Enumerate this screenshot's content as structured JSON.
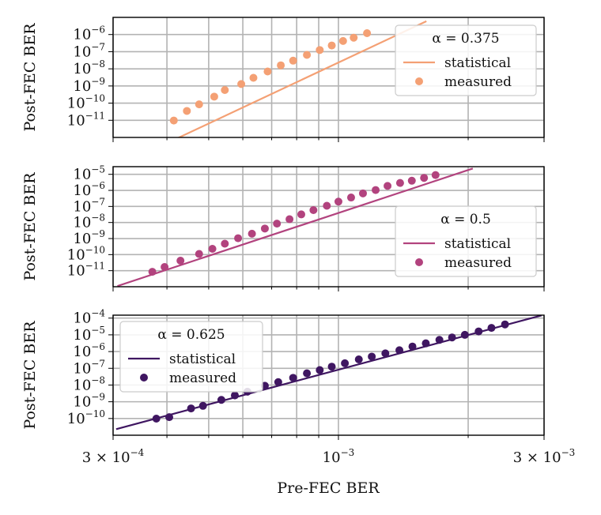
{
  "chart_data": [
    {
      "type": "line",
      "title": "",
      "ylabel": "Post-FEC BER",
      "xscale": "log",
      "yscale": "log",
      "xlim": [
        0.0003,
        0.003
      ],
      "ylim": [
        1e-12,
        1e-05
      ],
      "grid": true,
      "legend_position": "top-right",
      "legend_title": "α = 0.375",
      "color": "#f4a074",
      "y_ticks": [
        {
          "exp": "-6",
          "value": 1e-06
        },
        {
          "exp": "-7",
          "value": 1e-07
        },
        {
          "exp": "-8",
          "value": 1e-08
        },
        {
          "exp": "-9",
          "value": 1e-09
        },
        {
          "exp": "-10",
          "value": 1e-10
        },
        {
          "exp": "-11",
          "value": 1e-11
        }
      ],
      "series": [
        {
          "name": "statistical",
          "kind": "line",
          "x": [
            0.000395,
            0.0016
          ],
          "y": [
            4e-13,
            6e-06
          ]
        },
        {
          "name": "measured",
          "kind": "scatter",
          "x": [
            0.000415,
            0.000445,
            0.000475,
            0.000515,
            0.000545,
            0.000595,
            0.000635,
            0.000685,
            0.000735,
            0.000785,
            0.000845,
            0.000905,
            0.000965,
            0.001025,
            0.001085,
            0.001165
          ],
          "y": [
            9.7e-12,
            3.5e-11,
            8.5e-11,
            2.4e-10,
            5.8e-10,
            1.3e-09,
            3e-09,
            7e-09,
            1.6e-08,
            3e-08,
            6.5e-08,
            1.25e-07,
            2.3e-07,
            4.2e-07,
            6.5e-07,
            1.2e-06
          ]
        }
      ]
    },
    {
      "type": "line",
      "title": "",
      "ylabel": "Post-FEC BER",
      "xscale": "log",
      "yscale": "log",
      "xlim": [
        0.0003,
        0.003
      ],
      "ylim": [
        1e-12,
        3e-05
      ],
      "grid": true,
      "legend_position": "right",
      "legend_title": "α = 0.5",
      "color": "#b2437e",
      "y_ticks": [
        {
          "exp": "-5",
          "value": 1e-05
        },
        {
          "exp": "-6",
          "value": 1e-06
        },
        {
          "exp": "-7",
          "value": 1e-07
        },
        {
          "exp": "-8",
          "value": 1e-08
        },
        {
          "exp": "-9",
          "value": 1e-09
        },
        {
          "exp": "-10",
          "value": 1e-10
        },
        {
          "exp": "-11",
          "value": 1e-11
        }
      ],
      "series": [
        {
          "name": "statistical",
          "kind": "line",
          "x": [
            0.000307,
            0.00205
          ],
          "y": [
            1.1e-12,
            2.3e-05
          ]
        },
        {
          "name": "measured",
          "kind": "scatter",
          "x": [
            0.00037,
            0.000395,
            0.00043,
            0.000475,
            0.00051,
            0.000545,
            0.000585,
            0.00063,
            0.000675,
            0.00072,
            0.00077,
            0.00082,
            0.000875,
            0.00094,
            0.001,
            0.00107,
            0.00114,
            0.00122,
            0.0013,
            0.00139,
            0.00148,
            0.00158,
            0.00168
          ],
          "y": [
            8.5e-12,
            1.7e-11,
            4.2e-11,
            1.1e-10,
            2.3e-10,
            4.8e-10,
            1.05e-09,
            2e-09,
            4.2e-09,
            8.5e-09,
            1.6e-08,
            3.2e-08,
            5.9e-08,
            1.1e-07,
            2e-07,
            3.6e-07,
            6.5e-07,
            1.05e-06,
            1.9e-06,
            2.9e-06,
            4e-06,
            6e-06,
            9e-06
          ]
        }
      ]
    },
    {
      "type": "line",
      "title": "",
      "ylabel": "Post-FEC BER",
      "xlabel": "Pre-FEC BER",
      "xscale": "log",
      "yscale": "log",
      "xlim": [
        0.0003,
        0.003
      ],
      "ylim": [
        1e-11,
        0.00015
      ],
      "grid": true,
      "legend_position": "top-left",
      "legend_title": "α = 0.625",
      "color": "#3f1661",
      "x_ticks": [
        {
          "mant": "3 × 10",
          "exp": "−4",
          "value": 0.0003
        },
        {
          "mant": "10",
          "exp": "−3",
          "value": 0.001
        },
        {
          "mant": "3 × 10",
          "exp": "−3",
          "value": 0.003
        }
      ],
      "y_ticks": [
        {
          "exp": "-4",
          "value": 0.0001
        },
        {
          "exp": "-5",
          "value": 1e-05
        },
        {
          "exp": "-6",
          "value": 1e-06
        },
        {
          "exp": "-7",
          "value": 1e-07
        },
        {
          "exp": "-8",
          "value": 1e-08
        },
        {
          "exp": "-9",
          "value": 1e-09
        },
        {
          "exp": "-10",
          "value": 1e-10
        }
      ],
      "series": [
        {
          "name": "statistical",
          "kind": "line",
          "x": [
            0.000305,
            0.00296
          ],
          "y": [
            2.3e-11,
            0.000145
          ]
        },
        {
          "name": "measured",
          "kind": "scatter",
          "x": [
            0.000378,
            0.000405,
            0.000455,
            0.000485,
            0.000535,
            0.000575,
            0.000615,
            0.000675,
            0.000725,
            0.000785,
            0.000845,
            0.000905,
            0.000965,
            0.001035,
            0.001115,
            0.001195,
            0.001285,
            0.001385,
            0.001485,
            0.001595,
            0.001715,
            0.001835,
            0.001965,
            0.002115,
            0.002265,
            0.002435
          ],
          "y": [
            9.8e-11,
            1.2e-10,
            4e-10,
            5.7e-10,
            1.3e-09,
            2.4e-09,
            4e-09,
            9e-09,
            1.5e-08,
            2.7e-08,
            5e-08,
            7.8e-08,
            1.25e-07,
            2e-07,
            3.4e-07,
            5e-07,
            7.8e-07,
            1.2e-06,
            2e-06,
            3.1e-06,
            5e-06,
            7e-06,
            1e-05,
            1.6e-05,
            2.6e-05,
            4.2e-05
          ]
        }
      ]
    }
  ]
}
